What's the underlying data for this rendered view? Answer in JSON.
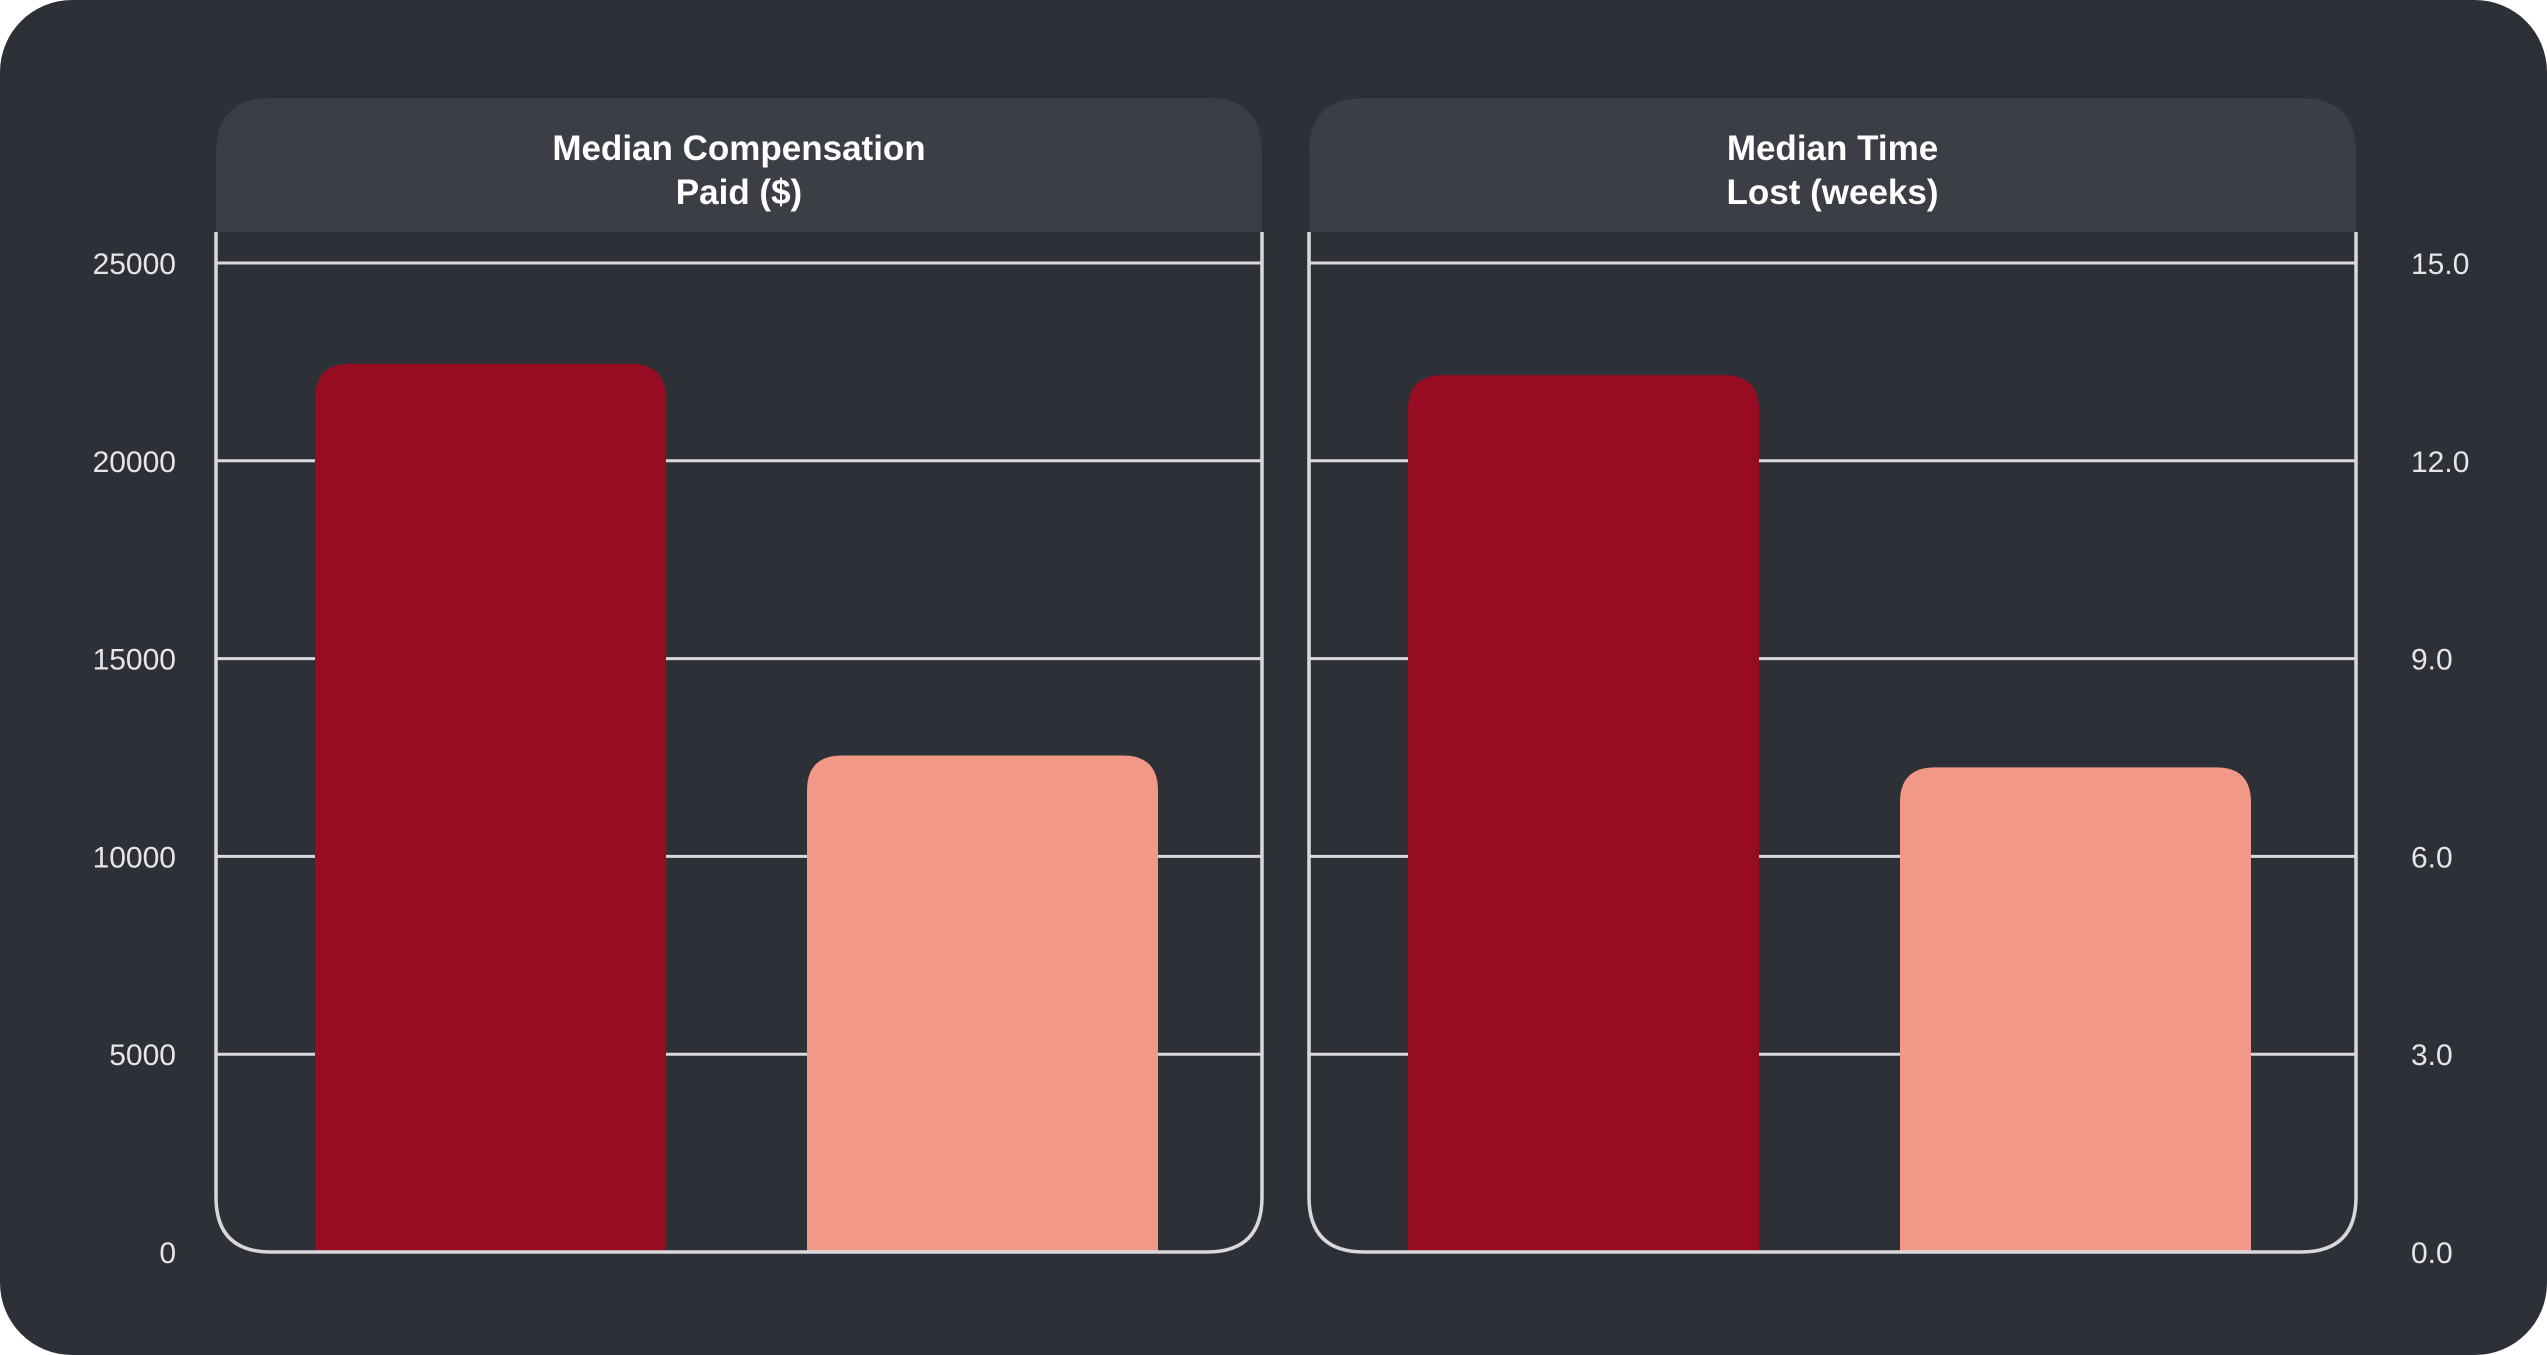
{
  "colors": {
    "background": "#2e3037",
    "header_band": "#3c3e46",
    "frame": "#d9d9dc",
    "gridline": "#d9d9dc",
    "series_dark": "#980c21",
    "series_light": "#f29886"
  },
  "chart_data": [
    {
      "type": "bar",
      "title": "Median Compensation Paid ($)",
      "title_lines": [
        "Median Compensation",
        "Paid ($)"
      ],
      "xlabel": "",
      "ylabel": "",
      "y_axis_side": "left",
      "ylim": [
        0,
        25000
      ],
      "y_ticks": [
        0,
        5000,
        10000,
        15000,
        20000,
        25000
      ],
      "y_tick_labels": [
        "0",
        "5000",
        "10000",
        "15000",
        "20000",
        "25000"
      ],
      "grid": true,
      "legend": "none",
      "categories": [
        "",
        ""
      ],
      "values": [
        22450,
        12550
      ],
      "bar_colors": [
        "#980c21",
        "#f29886"
      ]
    },
    {
      "type": "bar",
      "title": "Median Time Lost (weeks)",
      "title_lines": [
        "Median Time",
        "Lost (weeks)"
      ],
      "xlabel": "",
      "ylabel": "",
      "y_axis_side": "right",
      "ylim": [
        0,
        15
      ],
      "y_ticks": [
        0,
        3,
        6,
        9,
        12,
        15
      ],
      "y_tick_labels": [
        "0.0",
        "3.0",
        "6.0",
        "9.0",
        "12.0",
        "15.0"
      ],
      "grid": true,
      "legend": "none",
      "categories": [
        "",
        ""
      ],
      "values": [
        13.3,
        7.35
      ],
      "bar_colors": [
        "#980c21",
        "#f29886"
      ]
    }
  ]
}
